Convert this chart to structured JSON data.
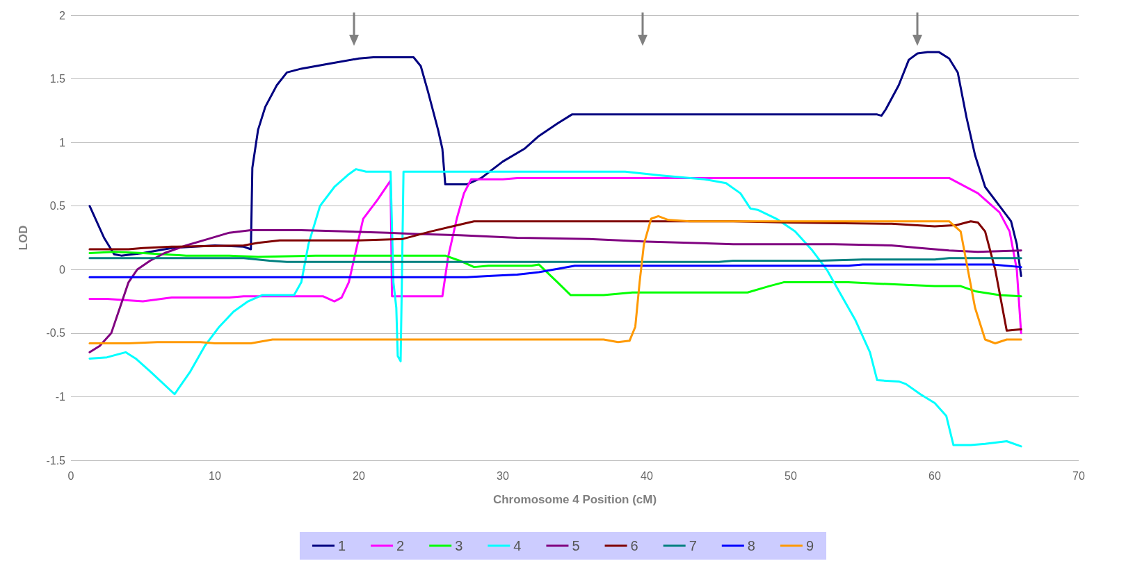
{
  "chart_data": {
    "type": "line",
    "xlabel": "Chromosome 4 Position (cM)",
    "ylabel": "LOD",
    "xlim": [
      0,
      70
    ],
    "xticks": [
      0,
      10,
      20,
      30,
      40,
      50,
      60,
      70
    ],
    "ylim": [
      -1.5,
      2
    ],
    "yticks": [
      -1.5,
      -1,
      -0.5,
      0,
      0.5,
      1,
      1.5,
      2
    ],
    "grid": "y",
    "legend": "bottom",
    "marker": "none",
    "line_style": "solid",
    "series": [
      {
        "name": "1",
        "color": "#000080",
        "x": [
          1.3,
          2.3,
          3.0,
          3.5,
          5,
          7,
          10,
          12,
          12.5,
          12.6,
          13,
          13.5,
          14.3,
          15,
          16,
          18,
          20,
          21,
          23.8,
          24.3,
          24.8,
          25.5,
          25.8,
          26,
          27.5,
          28.5,
          30,
          31.5,
          32.5,
          33.8,
          34.8,
          56,
          56.3,
          56.6,
          57.5,
          58.2,
          58.8,
          59.5,
          60.3,
          61,
          61.6,
          62.2,
          62.8,
          63.5,
          64.5,
          65.3,
          65.7,
          66
        ],
        "values": [
          0.5,
          0.25,
          0.12,
          0.11,
          0.13,
          0.17,
          0.19,
          0.18,
          0.16,
          0.8,
          1.1,
          1.28,
          1.45,
          1.55,
          1.58,
          1.62,
          1.66,
          1.67,
          1.67,
          1.6,
          1.4,
          1.1,
          0.95,
          0.67,
          0.67,
          0.72,
          0.85,
          0.95,
          1.05,
          1.15,
          1.22,
          1.22,
          1.21,
          1.26,
          1.45,
          1.65,
          1.7,
          1.71,
          1.71,
          1.66,
          1.55,
          1.2,
          0.9,
          0.65,
          0.5,
          0.38,
          0.2,
          -0.05
        ]
      },
      {
        "name": "2",
        "color": "#ff00ff",
        "x": [
          1.3,
          2.5,
          5,
          7,
          11,
          12,
          17.5,
          18.3,
          18.8,
          19.3,
          19.8,
          20.3,
          21.3,
          22.2,
          22.3,
          25.8,
          26.2,
          26.8,
          27.3,
          27.8,
          30,
          31,
          61,
          63,
          64.5,
          65.2,
          65.7,
          66
        ],
        "values": [
          -0.23,
          -0.23,
          -0.25,
          -0.22,
          -0.22,
          -0.21,
          -0.21,
          -0.25,
          -0.22,
          -0.1,
          0.15,
          0.4,
          0.55,
          0.7,
          -0.21,
          -0.21,
          0.1,
          0.4,
          0.6,
          0.71,
          0.71,
          0.72,
          0.72,
          0.6,
          0.45,
          0.3,
          0,
          -0.5
        ]
      },
      {
        "name": "3",
        "color": "#00ff00",
        "x": [
          1.3,
          3,
          5,
          8,
          11,
          13,
          17,
          26,
          27,
          28,
          29,
          32,
          32.5,
          33.8,
          34.7,
          37,
          39,
          47,
          48.5,
          49.5,
          54,
          56,
          58,
          60,
          61.8,
          62.8,
          64.5,
          66
        ],
        "values": [
          0.13,
          0.14,
          0.13,
          0.11,
          0.11,
          0.1,
          0.11,
          0.11,
          0.07,
          0.02,
          0.03,
          0.03,
          0.04,
          -0.1,
          -0.2,
          -0.2,
          -0.18,
          -0.18,
          -0.13,
          -0.1,
          -0.1,
          -0.11,
          -0.12,
          -0.13,
          -0.13,
          -0.17,
          -0.2,
          -0.21
        ]
      },
      {
        "name": "4",
        "color": "#00ffff",
        "x": [
          1.3,
          2.5,
          3.8,
          4.5,
          5.5,
          7.2,
          8.3,
          9.3,
          10.3,
          11.3,
          12.3,
          13.3,
          15.5,
          16,
          16.5,
          17.3,
          18.3,
          19.3,
          19.8,
          20.5,
          22.2,
          22.4,
          22.6,
          22.7,
          22.9,
          23,
          23.1,
          38.5,
          41,
          44,
          45.5,
          46.5,
          47.2,
          47.7,
          49,
          50.3,
          51.5,
          52.5,
          53.5,
          54.5,
          55.5,
          56,
          57.5,
          58,
          59,
          60,
          60.8,
          61.3,
          62.5,
          63.5,
          65,
          66
        ],
        "values": [
          -0.7,
          -0.69,
          -0.65,
          -0.7,
          -0.8,
          -0.98,
          -0.8,
          -0.6,
          -0.45,
          -0.33,
          -0.25,
          -0.2,
          -0.2,
          -0.1,
          0.2,
          0.5,
          0.65,
          0.75,
          0.79,
          0.77,
          0.77,
          -0.1,
          -0.3,
          -0.68,
          -0.72,
          0,
          0.77,
          0.77,
          0.74,
          0.71,
          0.68,
          0.6,
          0.48,
          0.47,
          0.4,
          0.3,
          0.15,
          0,
          -0.2,
          -0.4,
          -0.65,
          -0.87,
          -0.88,
          -0.9,
          -0.98,
          -1.05,
          -1.15,
          -1.38,
          -1.38,
          -1.37,
          -1.35,
          -1.39
        ]
      },
      {
        "name": "5",
        "color": "#800080",
        "x": [
          1.3,
          2,
          2.8,
          3.4,
          4,
          4.6,
          5.5,
          6.5,
          8,
          9.5,
          11,
          12.5,
          16,
          19,
          22,
          24,
          27,
          31,
          36,
          40,
          46,
          53,
          57,
          59,
          61,
          63,
          66
        ],
        "values": [
          -0.65,
          -0.6,
          -0.5,
          -0.3,
          -0.1,
          0,
          0.07,
          0.13,
          0.19,
          0.24,
          0.29,
          0.31,
          0.31,
          0.3,
          0.29,
          0.28,
          0.27,
          0.25,
          0.24,
          0.22,
          0.2,
          0.2,
          0.19,
          0.17,
          0.15,
          0.14,
          0.15
        ]
      },
      {
        "name": "6",
        "color": "#800000",
        "x": [
          1.3,
          4,
          5,
          7,
          12,
          13,
          14.5,
          20,
          23,
          24,
          25,
          26.5,
          28,
          46,
          50,
          57,
          60,
          61.5,
          62.5,
          63,
          63.5,
          64.2,
          64.7,
          65,
          66
        ],
        "values": [
          0.16,
          0.16,
          0.17,
          0.18,
          0.19,
          0.21,
          0.23,
          0.23,
          0.24,
          0.27,
          0.3,
          0.34,
          0.38,
          0.38,
          0.37,
          0.36,
          0.34,
          0.35,
          0.38,
          0.37,
          0.3,
          0,
          -0.3,
          -0.48,
          -0.47
        ]
      },
      {
        "name": "7",
        "color": "#008080",
        "x": [
          1.3,
          12,
          13.8,
          15,
          45,
          46,
          52,
          55,
          60,
          61,
          66
        ],
        "values": [
          0.09,
          0.09,
          0.07,
          0.06,
          0.06,
          0.07,
          0.07,
          0.08,
          0.08,
          0.09,
          0.09
        ]
      },
      {
        "name": "8",
        "color": "#0000ff",
        "x": [
          1.3,
          27.5,
          29,
          31,
          32.5,
          34,
          35,
          54,
          55,
          64,
          66
        ],
        "values": [
          -0.06,
          -0.06,
          -0.05,
          -0.04,
          -0.02,
          0.01,
          0.03,
          0.03,
          0.04,
          0.04,
          0.02
        ]
      },
      {
        "name": "9",
        "color": "#ff9900",
        "x": [
          1.3,
          4,
          6,
          9,
          10,
          12.5,
          14,
          37,
          38,
          38.8,
          39.2,
          39.5,
          39.8,
          40.3,
          40.8,
          41.5,
          43,
          61,
          61.8,
          62.3,
          62.8,
          63.5,
          64.2,
          65,
          66
        ],
        "values": [
          -0.58,
          -0.58,
          -0.57,
          -0.57,
          -0.58,
          -0.58,
          -0.55,
          -0.55,
          -0.57,
          -0.56,
          -0.45,
          -0.1,
          0.2,
          0.4,
          0.42,
          0.39,
          0.38,
          0.38,
          0.3,
          0,
          -0.3,
          -0.55,
          -0.58,
          -0.55,
          -0.55
        ]
      }
    ]
  }
}
